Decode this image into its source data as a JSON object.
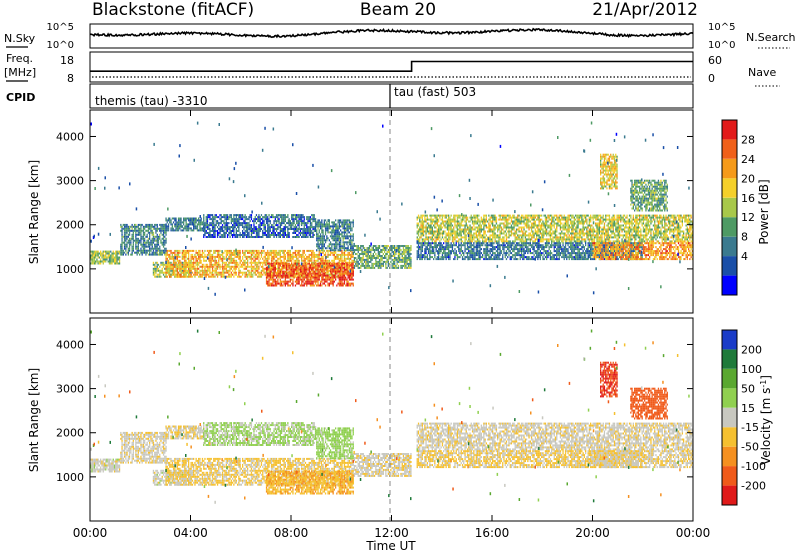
{
  "header": {
    "title": "Blackstone (fitACF)",
    "beam": "Beam 20",
    "date": "21/Apr/2012"
  },
  "noise_panel": {
    "left_label": "N.Sky",
    "right_label": "N.Search",
    "left_ticks": [
      "10^5",
      "10^0"
    ],
    "right_ticks": [
      "10^5",
      "10^0"
    ]
  },
  "freq_panel": {
    "left_label_1": "Freq.",
    "left_label_2": "[MHz]",
    "right_label": "Nave",
    "left_ticks": [
      "18",
      "8"
    ],
    "right_ticks": [
      "60",
      "0"
    ]
  },
  "cpid_panel": {
    "label": "CPID",
    "mode_1": "themis (tau) -3310",
    "mode_2": "tau (fast) 503"
  },
  "power_panel": {
    "ylabel": "Slant Range [km]",
    "colorbar_label": "Power [dB]",
    "colorbar_ticks": [
      "28",
      "24",
      "20",
      "16",
      "12",
      "8",
      "4"
    ]
  },
  "velocity_panel": {
    "ylabel": "Slant Range [km]",
    "colorbar_label": "Velocity [m s^-1]",
    "colorbar_ticks": [
      "200",
      "100",
      "50",
      "15",
      "-15",
      "-50",
      "-100",
      "-200"
    ]
  },
  "xaxis": {
    "label": "Time UT",
    "ticks": [
      "00:00",
      "04:00",
      "08:00",
      "12:00",
      "16:00",
      "20:00",
      "00:00"
    ]
  },
  "power_colors": [
    "#0000ff",
    "#1a4fa8",
    "#3a7a8f",
    "#4e9a64",
    "#a8c84a",
    "#f5d02a",
    "#f59a1a",
    "#f0601a",
    "#e21a1a"
  ],
  "velocity_colors": [
    "#1a3cc8",
    "#1f7a3a",
    "#5aa830",
    "#90d050",
    "#c8c8c0",
    "#f5c030",
    "#f59020",
    "#f05a1a",
    "#e01a1a"
  ],
  "chart_data": {
    "type": "heatmap",
    "x_unit": "hours UT",
    "xlim": [
      0,
      24
    ],
    "ylim": [
      0,
      4600
    ],
    "yticks": [
      1000,
      2000,
      3000,
      4000
    ],
    "power_scale": [
      0,
      30
    ],
    "velocity_scale": [
      -250,
      250
    ],
    "echo_regions": [
      {
        "t0": 0.0,
        "t1": 1.2,
        "r0": 1100,
        "r1": 1400,
        "p": 14,
        "v": 0
      },
      {
        "t0": 1.2,
        "t1": 3.0,
        "r0": 1300,
        "r1": 2000,
        "p": 9,
        "v": -5
      },
      {
        "t0": 3.0,
        "t1": 4.5,
        "r0": 1850,
        "r1": 2150,
        "p": 8,
        "v": -10
      },
      {
        "t0": 2.5,
        "t1": 4.0,
        "r0": 800,
        "r1": 1150,
        "p": 14,
        "v": 0
      },
      {
        "t0": 3.0,
        "t1": 10.5,
        "r0": 800,
        "r1": 1400,
        "p": 20,
        "v": -20
      },
      {
        "t0": 7.0,
        "t1": 10.5,
        "r0": 600,
        "r1": 1100,
        "p": 26,
        "v": -45
      },
      {
        "t0": 4.5,
        "t1": 9.0,
        "r0": 1700,
        "r1": 2200,
        "p": 7,
        "v": 20
      },
      {
        "t0": 9.0,
        "t1": 10.5,
        "r0": 1400,
        "r1": 2100,
        "p": 9,
        "v": 30
      },
      {
        "t0": 10.5,
        "t1": 12.8,
        "r0": 1000,
        "r1": 1500,
        "p": 12,
        "v": -5
      },
      {
        "t0": 13.0,
        "t1": 24.0,
        "r0": 1600,
        "r1": 2200,
        "p": 16,
        "v": -5
      },
      {
        "t0": 13.0,
        "t1": 22.0,
        "r0": 1200,
        "r1": 1600,
        "p": 8,
        "v": -20
      },
      {
        "t0": 20.0,
        "t1": 24.0,
        "r0": 1200,
        "r1": 1600,
        "p": 22,
        "v": -10
      },
      {
        "t0": 20.3,
        "t1": 21.0,
        "r0": 2800,
        "r1": 3600,
        "p": 18,
        "v": -200
      },
      {
        "t0": 21.5,
        "t1": 23.0,
        "r0": 2300,
        "r1": 3000,
        "p": 12,
        "v": -180
      }
    ],
    "freq_mhz": {
      "t": [
        0,
        12.8,
        12.8,
        24
      ],
      "v": [
        10,
        10,
        14.5,
        14.5
      ]
    },
    "cpid_change_hour": 12.8
  }
}
